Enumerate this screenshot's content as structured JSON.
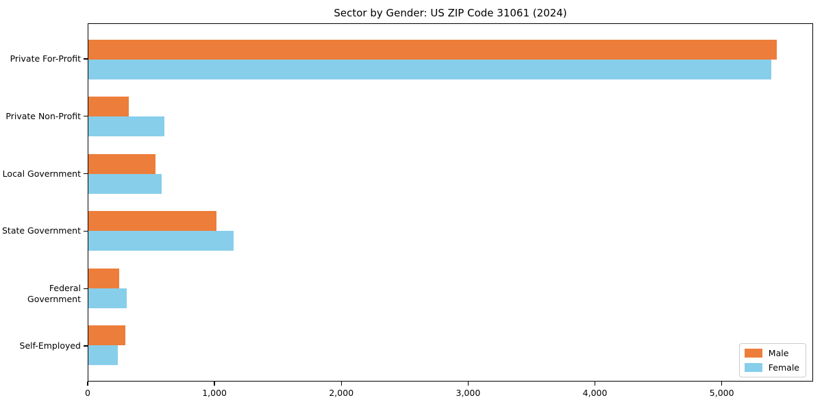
{
  "chart_data": {
    "type": "bar",
    "orientation": "horizontal",
    "title": "Sector by Gender: US ZIP Code 31061 (2024)",
    "categories": [
      "Private For-Profit",
      "Private Non-Profit",
      "Local Government",
      "State Government",
      "Federal Government",
      "Self-Employed"
    ],
    "series": [
      {
        "name": "Male",
        "color": "#ed7d3a",
        "values": [
          5440,
          320,
          530,
          1010,
          245,
          290
        ]
      },
      {
        "name": "Female",
        "color": "#87ceeb",
        "values": [
          5395,
          600,
          580,
          1145,
          305,
          235
        ]
      }
    ],
    "xlabel": "",
    "ylabel": "",
    "xlim": [
      0,
      5720
    ],
    "xticks": {
      "values": [
        0,
        1000,
        2000,
        3000,
        4000,
        5000
      ],
      "labels": [
        "0",
        "1,000",
        "2,000",
        "3,000",
        "4,000",
        "5,000"
      ]
    },
    "grid": false,
    "legend_position": "lower right",
    "axis_color": "#000000",
    "background_color": "#ffffff"
  }
}
